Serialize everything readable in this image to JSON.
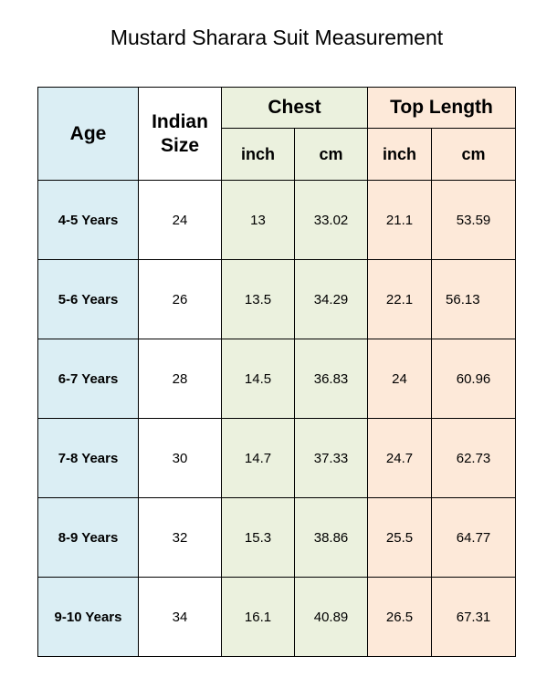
{
  "title": "Mustard Sharara Suit Measurement",
  "headers": {
    "age": "Age",
    "indian_size": "Indian Size",
    "chest": "Chest",
    "top_length": "Top Length",
    "chest_inch": "inch",
    "chest_cm": "cm",
    "top_inch": "inch",
    "top_cm": "cm"
  },
  "rows": [
    {
      "age": "4-5 Years",
      "size": "24",
      "chest_inch": "13",
      "chest_cm": "33.02",
      "top_inch": "21.1",
      "top_cm": "53.59"
    },
    {
      "age": "5-6 Years",
      "size": "26",
      "chest_inch": "13.5",
      "chest_cm": "34.29",
      "top_inch": "22.1",
      "top_cm": "56.13"
    },
    {
      "age": "6-7 Years",
      "size": "28",
      "chest_inch": "14.5",
      "chest_cm": "36.83",
      "top_inch": "24",
      "top_cm": "60.96"
    },
    {
      "age": "7-8 Years",
      "size": "30",
      "chest_inch": "14.7",
      "chest_cm": "37.33",
      "top_inch": "24.7",
      "top_cm": "62.73"
    },
    {
      "age": "8-9 Years",
      "size": "32",
      "chest_inch": "15.3",
      "chest_cm": "38.86",
      "top_inch": "25.5",
      "top_cm": "64.77"
    },
    {
      "age": "9-10 Years",
      "size": "34",
      "chest_inch": "16.1",
      "chest_cm": "40.89",
      "top_inch": "26.5",
      "top_cm": "67.31"
    }
  ],
  "colors": {
    "age_column": "#dbeef4",
    "chest_columns": "#ebf1de",
    "top_length_columns": "#fde9d9",
    "size_column": "#ffffff"
  }
}
